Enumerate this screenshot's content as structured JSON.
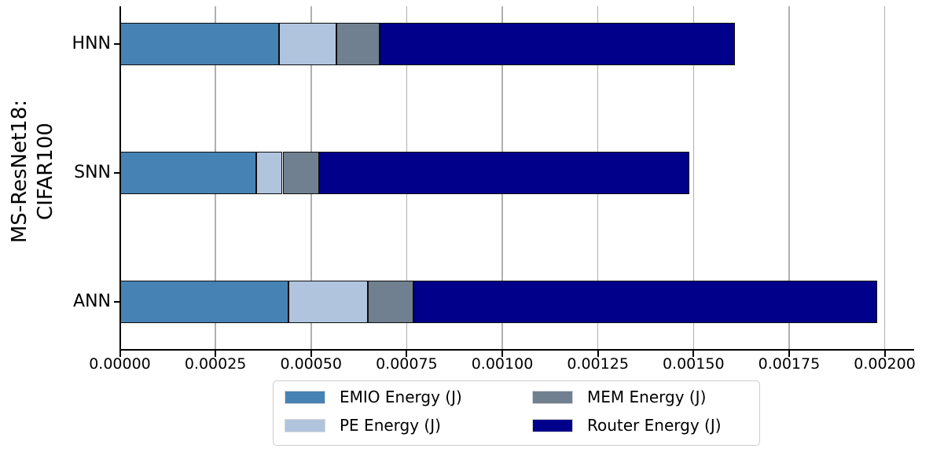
{
  "chart_data": {
    "type": "bar",
    "orientation": "horizontal",
    "stacked": true,
    "title": "",
    "xlabel": "",
    "ylabel": "MS-ResNet18:\nCIFAR100",
    "ylabel_lines": [
      "MS-ResNet18:",
      "CIFAR100"
    ],
    "categories": [
      "HNN",
      "SNN",
      "ANN"
    ],
    "series": [
      {
        "name": "EMIO Energy (J)",
        "color": "#4682B4",
        "values": [
          0.000416,
          0.000357,
          0.000441
        ]
      },
      {
        "name": "PE Energy (J)",
        "color": "#B0C4DE",
        "values": [
          0.000151,
          6.85e-05,
          0.000207
        ]
      },
      {
        "name": "MEM Energy (J)",
        "color": "#708090",
        "values": [
          0.000112,
          9.61e-05,
          0.00012
        ]
      },
      {
        "name": "Router Energy (J)",
        "color": "#00008B",
        "values": [
          0.00093,
          0.000968,
          0.001212
        ]
      }
    ],
    "totals": [
      0.001609,
      0.001489,
      0.00198
    ],
    "x_ticks": [
      0.0,
      0.00025,
      0.0005,
      0.00075,
      0.001,
      0.00125,
      0.0015,
      0.00175,
      0.002
    ],
    "x_tick_labels": [
      "0.00000",
      "0.00025",
      "0.00050",
      "0.00075",
      "0.00100",
      "0.00125",
      "0.00150",
      "0.00175",
      "0.00200"
    ],
    "xlim": [
      0,
      0.002077
    ],
    "grid": "vertical",
    "grid_color": "#b0b0b0",
    "axis_color": "#000000",
    "bar_edge_color": "#0d0d0d",
    "legend_position": "bottom",
    "legend_ncol": 2
  }
}
